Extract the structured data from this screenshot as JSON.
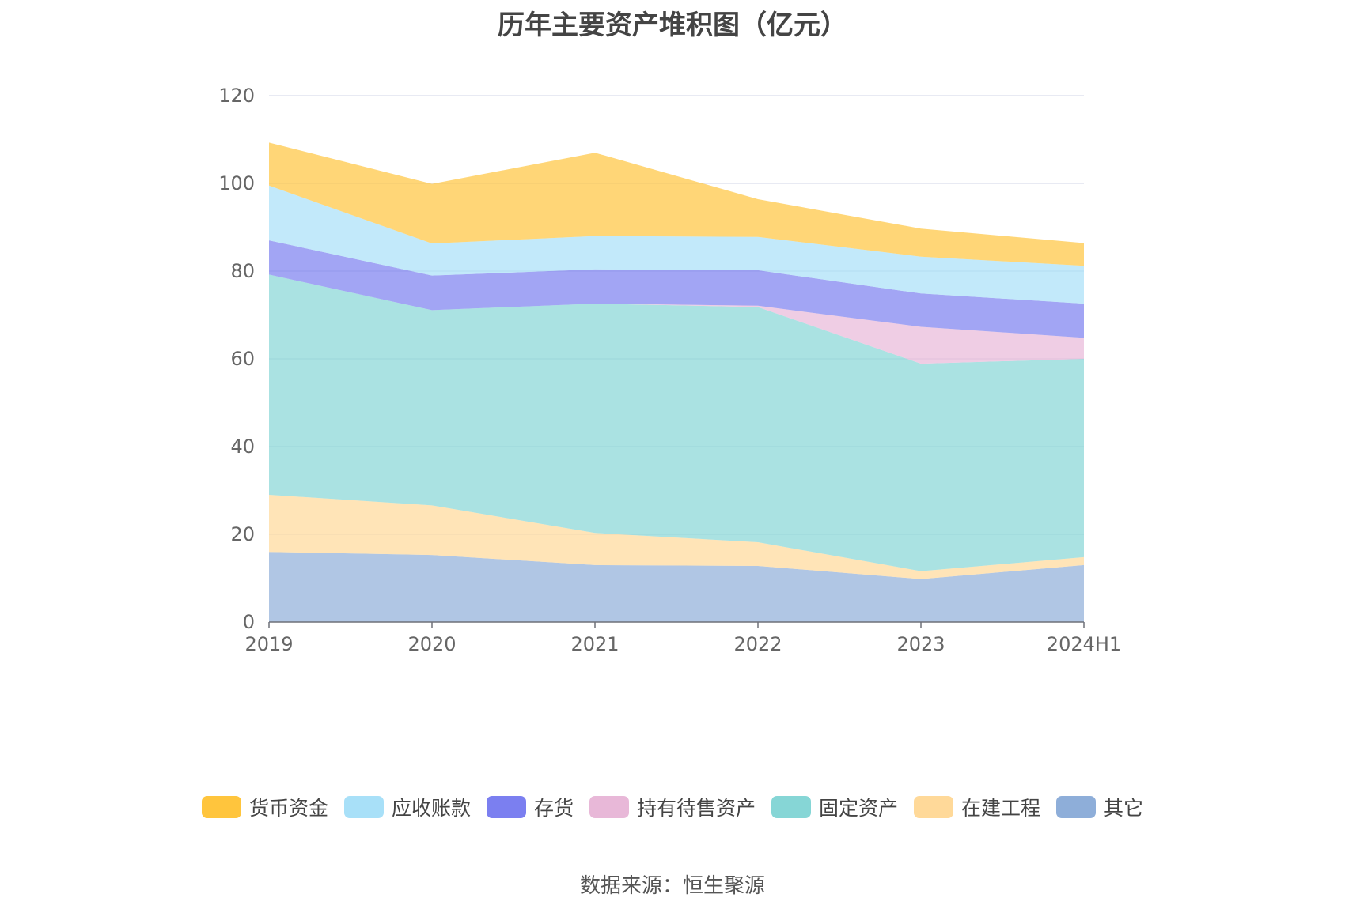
{
  "chart_data": {
    "type": "area",
    "title": "历年主要资产堆积图（亿元）",
    "source": "数据来源：恒生聚源",
    "categories": [
      "2019",
      "2020",
      "2021",
      "2022",
      "2023",
      "2024H1"
    ],
    "y_ticks": [
      "0",
      "20",
      "40",
      "60",
      "80",
      "100",
      "120"
    ],
    "ylim": [
      0,
      120
    ],
    "stacked": true,
    "grid": true,
    "legend_position": "bottom",
    "series": [
      {
        "name": "其它",
        "color": "#8eaed9",
        "values": [
          16.0,
          15.3,
          13.0,
          12.8,
          9.8,
          13.0
        ]
      },
      {
        "name": "在建工程",
        "color": "#ffd999",
        "values": [
          13.0,
          11.3,
          7.3,
          5.4,
          1.8,
          1.8
        ]
      },
      {
        "name": "固定资产",
        "color": "#86d6d6",
        "values": [
          50.2,
          44.5,
          52.3,
          53.6,
          47.3,
          45.2
        ]
      },
      {
        "name": "持有待售资产",
        "color": "#e8b8d8",
        "values": [
          0,
          0,
          0,
          0.3,
          8.4,
          4.8
        ]
      },
      {
        "name": "存货",
        "color": "#7b7ff0",
        "values": [
          7.8,
          7.9,
          7.8,
          8.1,
          7.6,
          7.8
        ]
      },
      {
        "name": "应收账款",
        "color": "#a8e0f8",
        "values": [
          12.5,
          7.3,
          7.6,
          7.6,
          8.4,
          8.6
        ]
      },
      {
        "name": "货币资金",
        "color": "#ffc53d",
        "values": [
          9.8,
          13.6,
          19.0,
          8.6,
          6.4,
          5.2
        ]
      }
    ]
  }
}
